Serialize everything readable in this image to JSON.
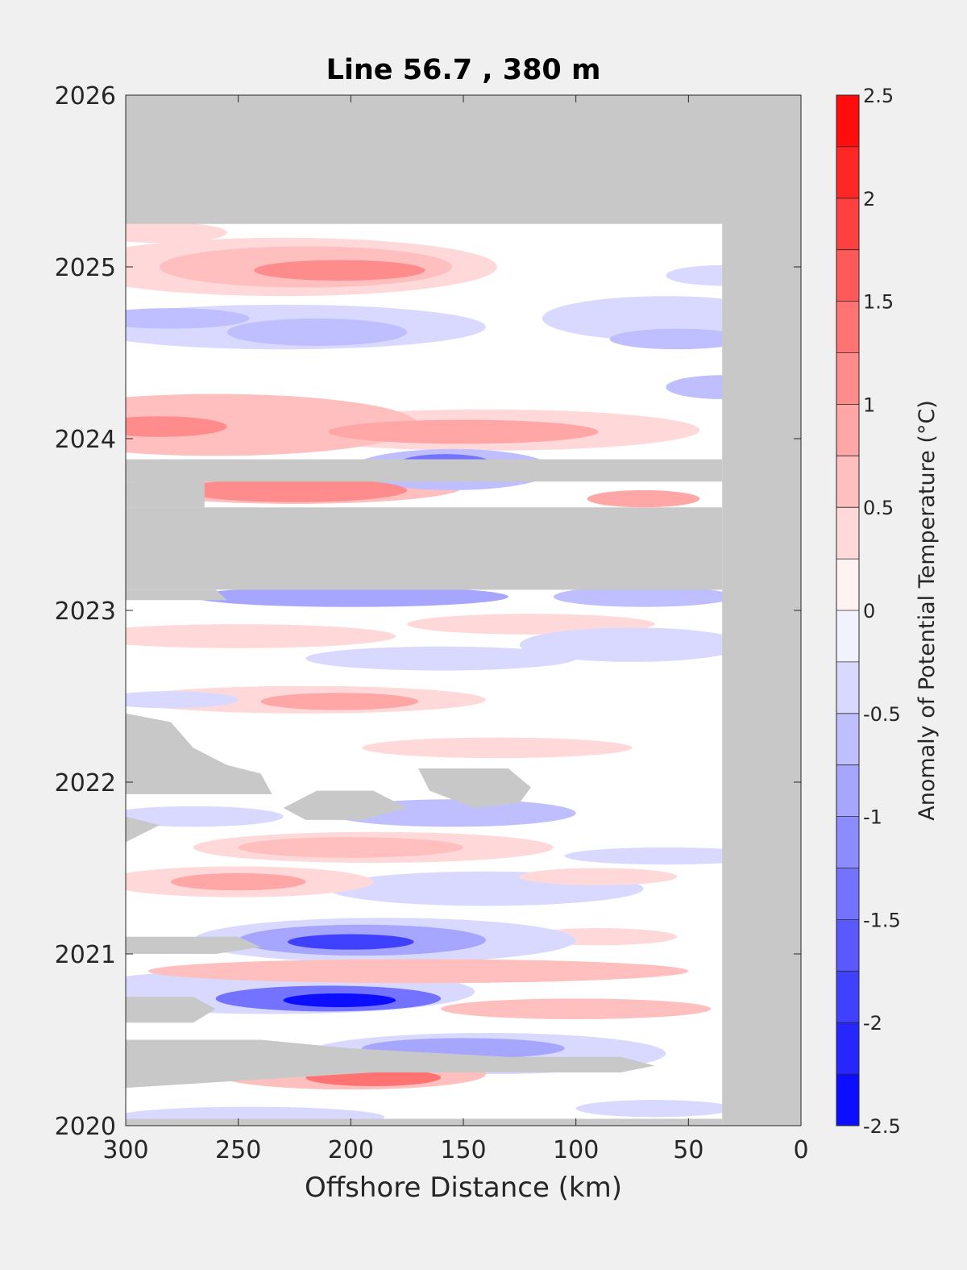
{
  "chart_data": {
    "type": "heatmap",
    "title": "Line 56.7 , 380 m",
    "xlabel": "Offshore Distance (km)",
    "ylabel": "",
    "x_reversed": true,
    "xlim": [
      0,
      300
    ],
    "ylim": [
      2020,
      2026
    ],
    "xticks": [
      "300",
      "250",
      "200",
      "150",
      "100",
      "50",
      "0"
    ],
    "yticks": [
      "2026",
      "2025",
      "2024",
      "2023",
      "2022",
      "2021",
      "2020"
    ],
    "colorbar": {
      "label": "Anomaly of Potential Temperature (°C)",
      "range": [
        -2.5,
        2.5
      ],
      "levels": 20,
      "ticks": [
        "2.5",
        "2",
        "1.5",
        "1",
        "0.5",
        "0",
        "-0.5",
        "-1",
        "-1.5",
        "-2",
        "-2.5"
      ],
      "low_color": "#0000ff",
      "mid_color": "#ffffff",
      "high_color": "#ff0000"
    },
    "missing_color": "#c8c8c8",
    "grid": false,
    "legend": "colorbar-right",
    "features": [
      {
        "kind": "warm",
        "x": 205,
        "y": 2024.98,
        "rx": 38,
        "ry": 0.06,
        "value": 1.0
      },
      {
        "kind": "warm",
        "x": 220,
        "y": 2025.0,
        "rx": 65,
        "ry": 0.12,
        "value": 0.7
      },
      {
        "kind": "warm",
        "x": 230,
        "y": 2025.0,
        "rx": 95,
        "ry": 0.17,
        "value": 0.35
      },
      {
        "kind": "warm",
        "x": 285,
        "y": 2025.2,
        "rx": 30,
        "ry": 0.06,
        "value": 0.3
      },
      {
        "kind": "cool",
        "x": 215,
        "y": 2024.62,
        "rx": 40,
        "ry": 0.08,
        "value": -0.6
      },
      {
        "kind": "cool",
        "x": 230,
        "y": 2024.65,
        "rx": 90,
        "ry": 0.13,
        "value": -0.3
      },
      {
        "kind": "cool",
        "x": 280,
        "y": 2024.7,
        "rx": 35,
        "ry": 0.06,
        "value": -0.55
      },
      {
        "kind": "cool",
        "x": 55,
        "y": 2024.58,
        "rx": 30,
        "ry": 0.06,
        "value": -0.75
      },
      {
        "kind": "cool",
        "x": 60,
        "y": 2024.7,
        "rx": 55,
        "ry": 0.13,
        "value": -0.35
      },
      {
        "kind": "cool",
        "x": 35,
        "y": 2024.3,
        "rx": 25,
        "ry": 0.07,
        "value": -0.6
      },
      {
        "kind": "cool",
        "x": 35,
        "y": 2024.95,
        "rx": 25,
        "ry": 0.06,
        "value": -0.5
      },
      {
        "kind": "warm",
        "x": 285,
        "y": 2024.07,
        "rx": 30,
        "ry": 0.06,
        "value": 1.1
      },
      {
        "kind": "warm",
        "x": 260,
        "y": 2024.08,
        "rx": 90,
        "ry": 0.18,
        "value": 0.5
      },
      {
        "kind": "warm",
        "x": 150,
        "y": 2024.04,
        "rx": 60,
        "ry": 0.07,
        "value": 0.8
      },
      {
        "kind": "warm",
        "x": 140,
        "y": 2024.05,
        "rx": 95,
        "ry": 0.12,
        "value": 0.35
      },
      {
        "kind": "cool",
        "x": 158,
        "y": 2023.86,
        "rx": 20,
        "ry": 0.05,
        "value": -1.5
      },
      {
        "kind": "cool",
        "x": 155,
        "y": 2023.82,
        "rx": 45,
        "ry": 0.12,
        "value": -0.7
      },
      {
        "kind": "warm",
        "x": 225,
        "y": 2023.7,
        "rx": 50,
        "ry": 0.07,
        "value": 1.1
      },
      {
        "kind": "warm",
        "x": 225,
        "y": 2023.72,
        "rx": 75,
        "ry": 0.1,
        "value": 0.5
      },
      {
        "kind": "warm",
        "x": 70,
        "y": 2023.65,
        "rx": 25,
        "ry": 0.05,
        "value": 0.8
      },
      {
        "kind": "cool",
        "x": 200,
        "y": 2023.08,
        "rx": 70,
        "ry": 0.06,
        "value": -0.9
      },
      {
        "kind": "cool",
        "x": 70,
        "y": 2023.08,
        "rx": 40,
        "ry": 0.06,
        "value": -0.6
      },
      {
        "kind": "warm",
        "x": 250,
        "y": 2022.85,
        "rx": 70,
        "ry": 0.07,
        "value": 0.3
      },
      {
        "kind": "warm",
        "x": 120,
        "y": 2022.92,
        "rx": 55,
        "ry": 0.06,
        "value": 0.35
      },
      {
        "kind": "cool",
        "x": 75,
        "y": 2022.8,
        "rx": 50,
        "ry": 0.1,
        "value": -0.45
      },
      {
        "kind": "cool",
        "x": 160,
        "y": 2022.72,
        "rx": 60,
        "ry": 0.07,
        "value": -0.35
      },
      {
        "kind": "warm",
        "x": 205,
        "y": 2022.47,
        "rx": 35,
        "ry": 0.05,
        "value": 0.8
      },
      {
        "kind": "warm",
        "x": 220,
        "y": 2022.48,
        "rx": 80,
        "ry": 0.08,
        "value": 0.4
      },
      {
        "kind": "cool",
        "x": 280,
        "y": 2022.48,
        "rx": 30,
        "ry": 0.05,
        "value": -0.4
      },
      {
        "kind": "warm",
        "x": 135,
        "y": 2022.2,
        "rx": 60,
        "ry": 0.06,
        "value": 0.35
      },
      {
        "kind": "cool",
        "x": 155,
        "y": 2021.82,
        "rx": 55,
        "ry": 0.08,
        "value": -0.6
      },
      {
        "kind": "cool",
        "x": 270,
        "y": 2021.8,
        "rx": 40,
        "ry": 0.06,
        "value": -0.45
      },
      {
        "kind": "warm",
        "x": 200,
        "y": 2021.62,
        "rx": 50,
        "ry": 0.06,
        "value": 0.7
      },
      {
        "kind": "warm",
        "x": 190,
        "y": 2021.62,
        "rx": 80,
        "ry": 0.09,
        "value": 0.35
      },
      {
        "kind": "cool",
        "x": 60,
        "y": 2021.57,
        "rx": 45,
        "ry": 0.05,
        "value": -0.45
      },
      {
        "kind": "warm",
        "x": 250,
        "y": 2021.42,
        "rx": 30,
        "ry": 0.05,
        "value": 0.9
      },
      {
        "kind": "warm",
        "x": 250,
        "y": 2021.42,
        "rx": 60,
        "ry": 0.09,
        "value": 0.45
      },
      {
        "kind": "cool",
        "x": 140,
        "y": 2021.38,
        "rx": 70,
        "ry": 0.1,
        "value": -0.35
      },
      {
        "kind": "warm",
        "x": 90,
        "y": 2021.45,
        "rx": 35,
        "ry": 0.05,
        "value": 0.4
      },
      {
        "kind": "cool",
        "x": 200,
        "y": 2021.07,
        "rx": 28,
        "ry": 0.045,
        "value": -1.8
      },
      {
        "kind": "cool",
        "x": 195,
        "y": 2021.08,
        "rx": 55,
        "ry": 0.09,
        "value": -1.0
      },
      {
        "kind": "cool",
        "x": 185,
        "y": 2021.08,
        "rx": 85,
        "ry": 0.13,
        "value": -0.45
      },
      {
        "kind": "warm",
        "x": 90,
        "y": 2021.1,
        "rx": 35,
        "ry": 0.05,
        "value": 0.35
      },
      {
        "kind": "warm",
        "x": 170,
        "y": 2020.9,
        "rx": 120,
        "ry": 0.07,
        "value": 0.55
      },
      {
        "kind": "warm",
        "x": 100,
        "y": 2020.68,
        "rx": 60,
        "ry": 0.06,
        "value": 0.55
      },
      {
        "kind": "cool",
        "x": 205,
        "y": 2020.73,
        "rx": 25,
        "ry": 0.04,
        "value": -2.3
      },
      {
        "kind": "cool",
        "x": 210,
        "y": 2020.74,
        "rx": 50,
        "ry": 0.075,
        "value": -1.3
      },
      {
        "kind": "cool",
        "x": 235,
        "y": 2020.78,
        "rx": 90,
        "ry": 0.13,
        "value": -0.5
      },
      {
        "kind": "cool",
        "x": 150,
        "y": 2020.45,
        "rx": 45,
        "ry": 0.06,
        "value": -0.9
      },
      {
        "kind": "cool",
        "x": 140,
        "y": 2020.42,
        "rx": 80,
        "ry": 0.12,
        "value": -0.4
      },
      {
        "kind": "warm",
        "x": 190,
        "y": 2020.28,
        "rx": 30,
        "ry": 0.05,
        "value": 1.3
      },
      {
        "kind": "warm",
        "x": 200,
        "y": 2020.3,
        "rx": 60,
        "ry": 0.09,
        "value": 0.5
      },
      {
        "kind": "cool",
        "x": 245,
        "y": 2020.05,
        "rx": 60,
        "ry": 0.06,
        "value": -0.45
      },
      {
        "kind": "cool",
        "x": 65,
        "y": 2020.1,
        "rx": 35,
        "ry": 0.05,
        "value": -0.35
      }
    ],
    "missing_regions": [
      {
        "x": [
          0,
          300,
          300,
          0
        ],
        "y": [
          2025.25,
          2025.25,
          2026,
          2026
        ]
      },
      {
        "x": [
          0,
          35,
          35,
          0
        ],
        "y": [
          2020,
          2020,
          2026,
          2026
        ]
      },
      {
        "x": [
          35,
          300,
          300,
          35
        ],
        "y": [
          2020,
          2020,
          2020.04,
          2020.04
        ]
      },
      {
        "x": [
          300,
          35,
          35,
          300
        ],
        "y": [
          2023.88,
          2023.88,
          2023.75,
          2023.75
        ]
      },
      {
        "x": [
          300,
          265,
          265,
          300
        ],
        "y": [
          2023.75,
          2023.75,
          2023.6,
          2023.6
        ]
      },
      {
        "x": [
          300,
          35,
          35,
          300
        ],
        "y": [
          2023.6,
          2023.6,
          2023.12,
          2023.12
        ]
      },
      {
        "x": [
          300,
          260,
          255,
          300
        ],
        "y": [
          2023.12,
          2023.12,
          2023.06,
          2023.06
        ]
      },
      {
        "x": [
          300,
          280,
          270,
          255,
          240,
          235,
          300
        ],
        "y": [
          2022.4,
          2022.35,
          2022.2,
          2022.1,
          2022.05,
          2021.93,
          2021.93
        ]
      },
      {
        "x": [
          300,
          285,
          300
        ],
        "y": [
          2021.8,
          2021.75,
          2021.65
        ]
      },
      {
        "x": [
          230,
          215,
          190,
          175,
          195,
          220
        ],
        "y": [
          2021.85,
          2021.95,
          2021.95,
          2021.85,
          2021.78,
          2021.78
        ]
      },
      {
        "x": [
          170,
          130,
          120,
          125,
          145,
          165
        ],
        "y": [
          2022.08,
          2022.08,
          2021.97,
          2021.88,
          2021.85,
          2021.95
        ]
      },
      {
        "x": [
          300,
          250,
          240,
          260,
          300
        ],
        "y": [
          2021.1,
          2021.1,
          2021.04,
          2021.0,
          2021.0
        ]
      },
      {
        "x": [
          300,
          270,
          260,
          270,
          300
        ],
        "y": [
          2020.75,
          2020.75,
          2020.68,
          2020.6,
          2020.6
        ]
      },
      {
        "x": [
          300,
          240,
          200,
          130,
          80,
          65,
          80,
          190,
          300
        ],
        "y": [
          2020.5,
          2020.5,
          2020.45,
          2020.4,
          2020.4,
          2020.35,
          2020.31,
          2020.31,
          2020.22
        ]
      }
    ]
  }
}
